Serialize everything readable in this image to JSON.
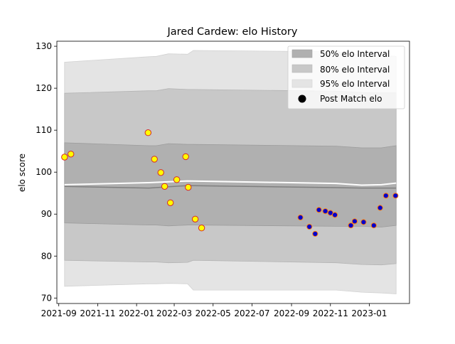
{
  "chart_data": {
    "type": "line",
    "title": "Jared Cardew: elo History",
    "xlabel": "",
    "ylabel": "elo score",
    "xlim": [
      "2021-08-29",
      "2023-03-05"
    ],
    "ylim": [
      68.7,
      131.2
    ],
    "x_ticks": [
      "2021-09",
      "2021-11",
      "2022-01",
      "2022-03",
      "2022-05",
      "2022-07",
      "2022-09",
      "2022-11",
      "2023-01"
    ],
    "y_ticks": [
      70,
      80,
      90,
      100,
      110,
      120,
      130
    ],
    "grid": false,
    "legend_position": "top-right",
    "legend": [
      "50% elo Interval",
      "80% elo Interval",
      "95% elo Interval",
      "Post Match elo"
    ],
    "colors": {
      "band_50": "#b0b0b0",
      "band_80": "#c8c8c8",
      "band_95": "#e4e4e4",
      "mean_line": "#7f7f7f",
      "median_line": "#ffffff",
      "marker_fill_2021_22": "#ffff00",
      "marker_edge_2021_22": "#d62728",
      "marker_fill_2022_23": "#0000cc",
      "marker_edge_2022_23": "#ff7f0e"
    },
    "series": [
      {
        "name": "95% elo Interval",
        "type": "band",
        "x": [
          "2021-09-10",
          "2022-01-20",
          "2022-02-01",
          "2022-02-20",
          "2022-03-22",
          "2022-03-31",
          "2022-11-10",
          "2022-12-20",
          "2023-01-20",
          "2023-02-12"
        ],
        "upper": [
          126.2,
          127.5,
          127.6,
          128.2,
          128.1,
          129.0,
          128.7,
          127.9,
          127.8,
          127.6
        ],
        "lower": [
          72.8,
          73.4,
          73.4,
          73.5,
          73.4,
          71.9,
          71.9,
          71.4,
          71.2,
          71.0
        ]
      },
      {
        "name": "80% elo Interval",
        "type": "band",
        "x": [
          "2021-09-10",
          "2022-01-20",
          "2022-02-01",
          "2022-02-20",
          "2022-03-22",
          "2022-03-31",
          "2022-11-10",
          "2022-12-20",
          "2023-01-20",
          "2023-02-12"
        ],
        "upper": [
          118.8,
          119.4,
          119.4,
          119.9,
          119.7,
          119.7,
          119.3,
          119.0,
          118.9,
          118.9
        ],
        "lower": [
          79.0,
          78.6,
          78.6,
          78.4,
          78.5,
          79.0,
          78.4,
          78.0,
          77.9,
          78.2
        ]
      },
      {
        "name": "50% elo Interval",
        "type": "band",
        "x": [
          "2021-09-10",
          "2022-01-20",
          "2022-02-01",
          "2022-02-20",
          "2022-03-22",
          "2022-03-31",
          "2022-11-10",
          "2022-12-20",
          "2023-01-20",
          "2023-02-12"
        ],
        "upper": [
          107.0,
          106.3,
          106.3,
          106.8,
          106.6,
          106.6,
          106.2,
          105.8,
          105.8,
          106.3
        ],
        "lower": [
          87.9,
          87.4,
          87.4,
          87.2,
          87.4,
          87.4,
          87.1,
          87.1,
          86.9,
          87.3
        ]
      },
      {
        "name": "median",
        "type": "line",
        "x": [
          "2021-09-10",
          "2022-01-20",
          "2022-03-22",
          "2022-11-10",
          "2022-12-20",
          "2023-01-20",
          "2023-02-12"
        ],
        "values": [
          97.0,
          97.5,
          97.9,
          97.3,
          96.9,
          97.0,
          97.4
        ]
      },
      {
        "name": "mean",
        "type": "line",
        "x": [
          "2021-09-10",
          "2022-01-20",
          "2022-03-22",
          "2022-11-10",
          "2022-12-20",
          "2023-01-20",
          "2023-02-12"
        ],
        "values": [
          96.6,
          96.2,
          96.8,
          96.3,
          96.2,
          96.2,
          96.2
        ]
      },
      {
        "name": "Post Match elo",
        "type": "scatter",
        "x": [
          "2021-09-10",
          "2021-09-20",
          "2022-01-19",
          "2022-01-29",
          "2022-02-08",
          "2022-02-14",
          "2022-02-23",
          "2022-03-05",
          "2022-03-19",
          "2022-03-23",
          "2022-04-03",
          "2022-04-13",
          "2022-09-15",
          "2022-09-29",
          "2022-10-08",
          "2022-10-14",
          "2022-10-24",
          "2022-11-01",
          "2022-11-08",
          "2022-12-03",
          "2022-12-09",
          "2022-12-23",
          "2023-01-08",
          "2023-01-18",
          "2023-01-27",
          "2023-02-11"
        ],
        "values": [
          103.6,
          104.3,
          109.4,
          103.1,
          99.9,
          96.6,
          92.7,
          98.2,
          103.7,
          96.4,
          88.8,
          86.7,
          89.2,
          87.0,
          85.3,
          91.0,
          90.7,
          90.3,
          89.8,
          87.3,
          88.3,
          88.1,
          87.3,
          91.5,
          94.4,
          94.4
        ],
        "season": [
          0,
          0,
          0,
          0,
          0,
          0,
          0,
          0,
          0,
          0,
          0,
          0,
          1,
          1,
          1,
          1,
          1,
          1,
          1,
          1,
          1,
          1,
          1,
          1,
          1,
          1
        ]
      }
    ]
  }
}
